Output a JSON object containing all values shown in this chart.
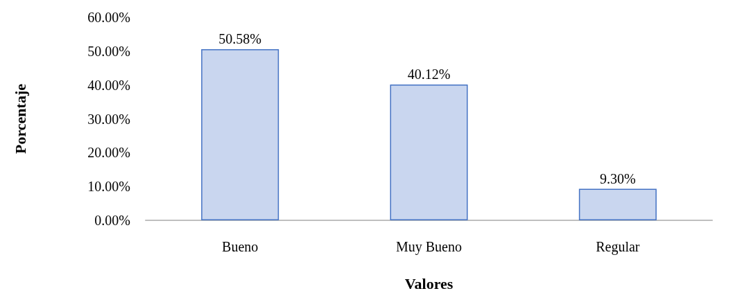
{
  "chart_data": {
    "type": "bar",
    "xlabel": "Valores",
    "ylabel": "Porcentaje",
    "categories": [
      "Bueno",
      "Muy Bueno",
      "Regular"
    ],
    "values": [
      50.58,
      40.12,
      9.3
    ],
    "value_labels": [
      "50.58%",
      "40.12%",
      "9.30%"
    ],
    "color": "#c9d6ef",
    "ylim": [
      0,
      60
    ],
    "yticks": [
      {
        "value": 0,
        "label": "0.00%"
      },
      {
        "value": 10,
        "label": "10.00%"
      },
      {
        "value": 20,
        "label": "20.00%"
      },
      {
        "value": 30,
        "label": "30.00%"
      },
      {
        "value": 40,
        "label": "40.00%"
      },
      {
        "value": 50,
        "label": "50.00%"
      },
      {
        "value": 60,
        "label": "60.00%"
      }
    ],
    "grid": false
  }
}
